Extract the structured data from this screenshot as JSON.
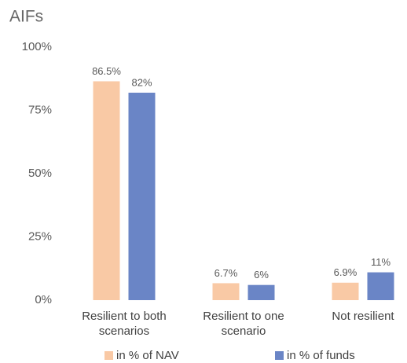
{
  "chart_data": {
    "type": "bar",
    "title": "AIFs",
    "categories": [
      "Resilient to both scenarios",
      "Resilient to one scenario",
      "Not resilient"
    ],
    "series": [
      {
        "name": "in % of NAV",
        "color": "#f9c9a5",
        "values": [
          86.5,
          6.7,
          6.9
        ],
        "value_labels": [
          "86.5%",
          "6.7%",
          "6.9%"
        ]
      },
      {
        "name": "in % of funds",
        "color": "#6a85c6",
        "values": [
          82,
          6,
          11
        ],
        "value_labels": [
          "82%",
          "6%",
          "11%"
        ]
      }
    ],
    "ylim": [
      0,
      100
    ],
    "yticks": [
      {
        "value": 0,
        "label": "0%"
      },
      {
        "value": 25,
        "label": "25%"
      },
      {
        "value": 50,
        "label": "50%"
      },
      {
        "value": 75,
        "label": "75%"
      },
      {
        "value": 100,
        "label": "100%"
      }
    ],
    "grid": false,
    "legend": "bottom"
  }
}
